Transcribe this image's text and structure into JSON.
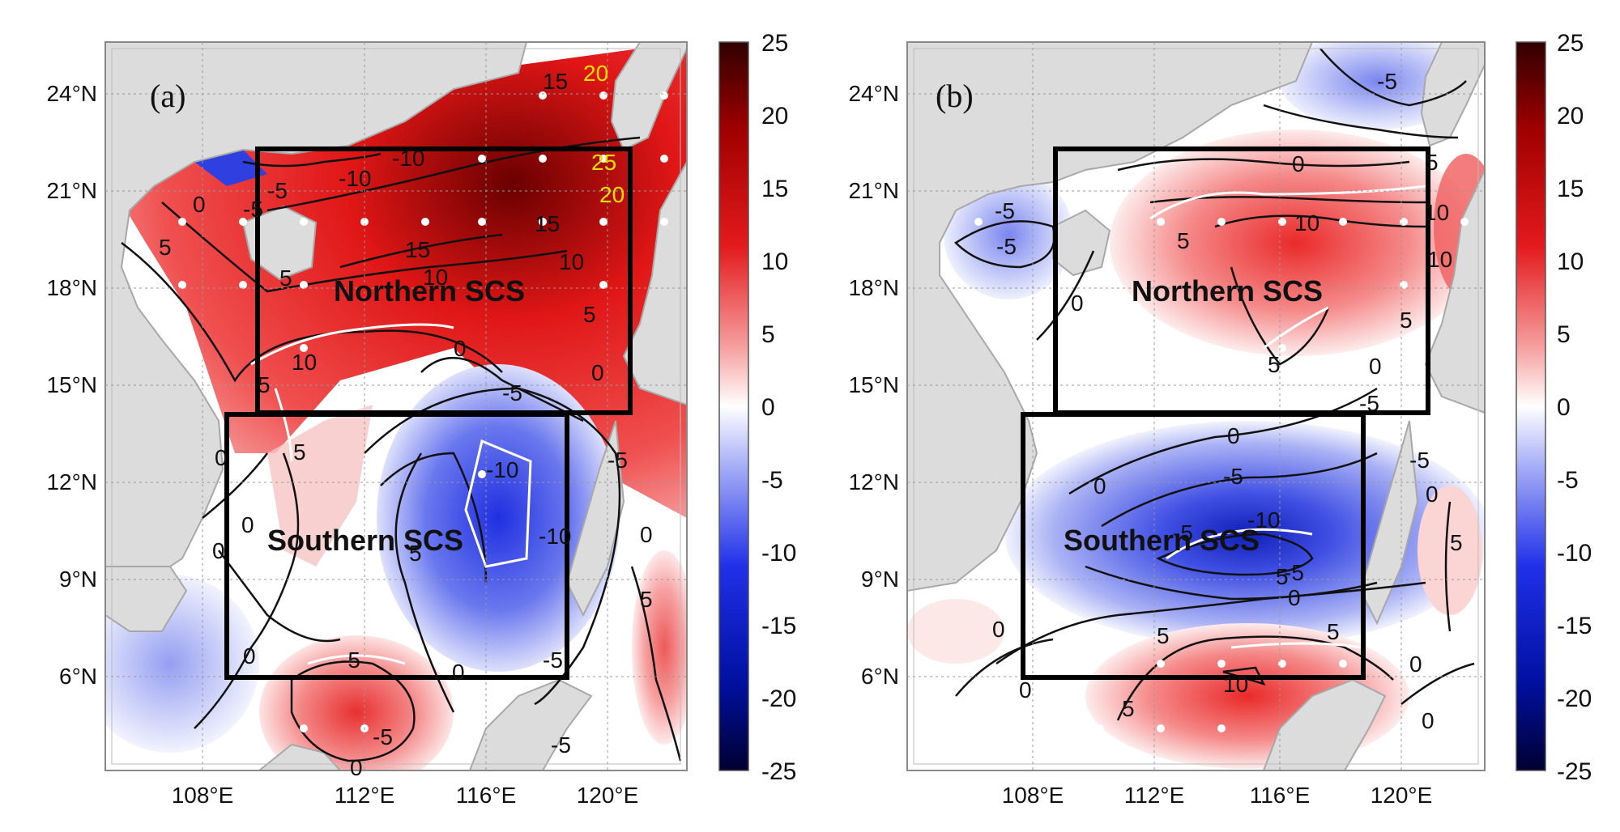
{
  "panels": [
    {
      "label": "(a)",
      "regions": [
        "Northern SCS",
        "Southern SCS"
      ],
      "x_ticks": [
        "108°E",
        "112°E",
        "116°E",
        "120°E"
      ],
      "y_ticks": [
        "24°N",
        "21°N",
        "18°N",
        "15°N",
        "12°N",
        "9°N",
        "6°N"
      ],
      "contour_labels": [
        "20",
        "15",
        "25",
        "20",
        "-10",
        "-10",
        "-5",
        "-5",
        "0",
        "15",
        "15",
        "10",
        "10",
        "5",
        "5",
        "10",
        "5",
        "0",
        "-5",
        "0",
        "-5",
        "5",
        "0",
        "-10",
        "-10",
        "5",
        "0",
        "0",
        "-5",
        "-5",
        "0",
        "5",
        "0",
        "0",
        "-5",
        "5",
        "0",
        "-5"
      ],
      "colorbar_ticks": [
        "25",
        "20",
        "15",
        "10",
        "5",
        "0",
        "-5",
        "-10",
        "-15",
        "-20",
        "-25"
      ]
    },
    {
      "label": "(b)",
      "regions": [
        "Northern SCS",
        "Southern SCS"
      ],
      "x_ticks": [
        "108°E",
        "112°E",
        "116°E",
        "120°E"
      ],
      "y_ticks": [
        "24°N",
        "21°N",
        "18°N",
        "15°N",
        "12°N",
        "9°N",
        "6°N"
      ],
      "contour_labels": [
        "0",
        "-5",
        "5",
        "-5",
        "10",
        "10",
        "10",
        "5",
        "0",
        "5",
        "5",
        "0",
        "-5",
        "0",
        "-5",
        "0",
        "-5",
        "-10",
        "5",
        "-5",
        "0",
        "0",
        "0",
        "-5",
        "5",
        "5",
        "5",
        "0",
        "0",
        "5",
        "-5",
        "10",
        "0"
      ],
      "colorbar_ticks": [
        "25",
        "20",
        "15",
        "10",
        "5",
        "0",
        "-5",
        "-10",
        "-15",
        "-20",
        "-25"
      ]
    }
  ],
  "colors": {
    "land": "#dcdcdc",
    "ocean_neutral": "#ffffff",
    "positive_max": "#3a0000",
    "positive": "#e31a1c",
    "negative": "#1a2ae0",
    "negative_max": "#00003a",
    "box": "#000000",
    "contour_highlight": "#ffffff",
    "label_yellow": "#e8e000"
  },
  "colorbar_range": [
    -25,
    25
  ]
}
